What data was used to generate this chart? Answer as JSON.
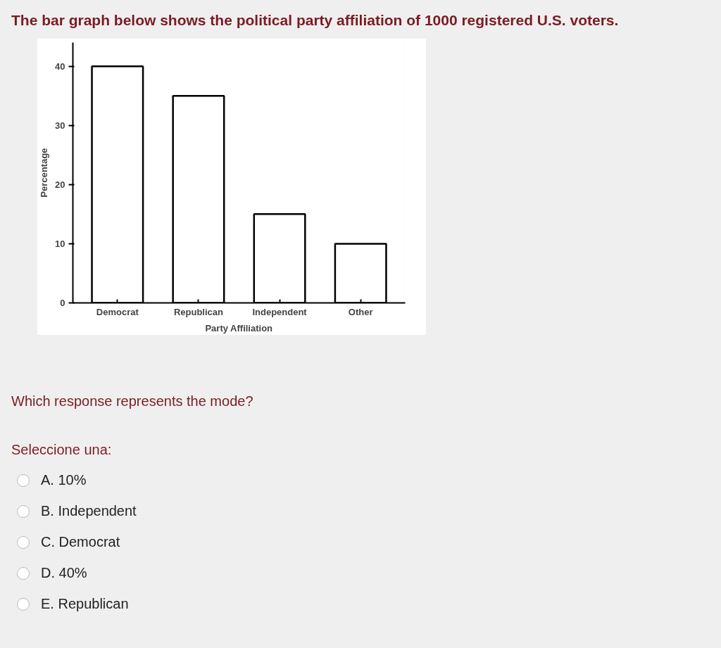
{
  "chart_data": {
    "type": "bar",
    "title": "The bar graph below shows the political party affiliation of 1000 registered U.S. voters.",
    "xlabel": "Party Affiliation",
    "ylabel": "Percentage",
    "categories": [
      "Democrat",
      "Republican",
      "Independent",
      "Other"
    ],
    "values": [
      40,
      35,
      15,
      10
    ],
    "color": "#ffffff",
    "ylim": [
      0,
      44
    ],
    "yticks": [
      0,
      10,
      20,
      30,
      40
    ],
    "grid": false,
    "annotations": [
      "Which response represents the mode?",
      "Seleccione una:",
      "A. 10%",
      "B. Independent",
      "C. Democrat",
      "D. 40%",
      "E. Republican"
    ]
  }
}
